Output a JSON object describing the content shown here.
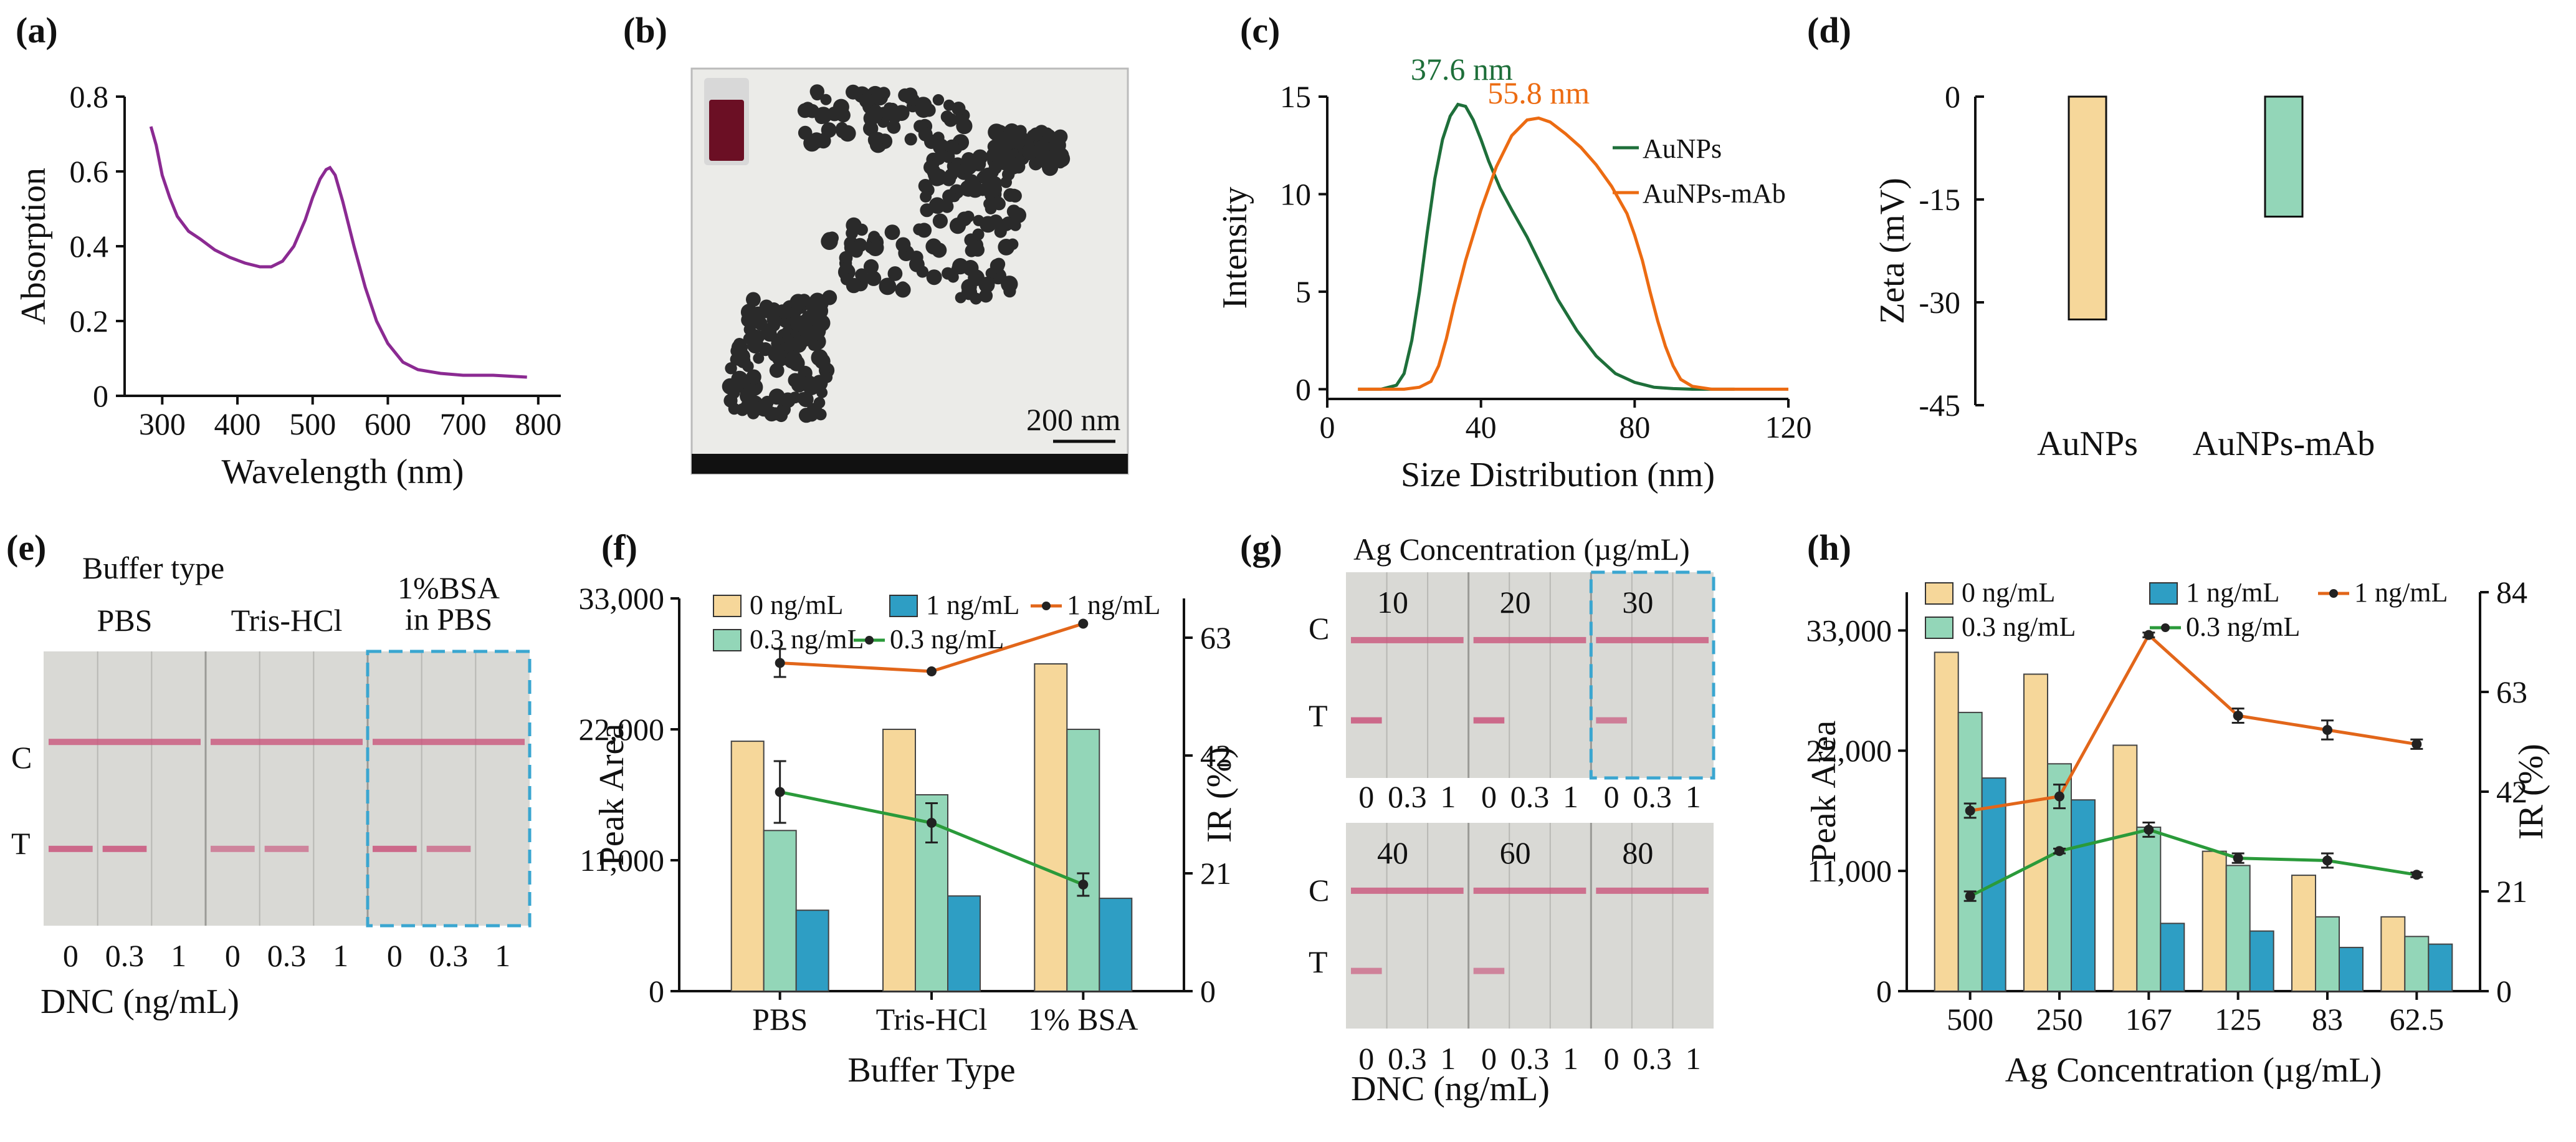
{
  "panels": {
    "a": {
      "label": "(a)"
    },
    "b": {
      "label": "(b)",
      "scale_bar": "200 nm"
    },
    "c": {
      "label": "(c)"
    },
    "d": {
      "label": "(d)"
    },
    "e": {
      "label": "(e)",
      "header": "Buffer type",
      "groups": [
        "PBS",
        "Tris-HCl",
        "1%BSA\nin PBS"
      ],
      "row_c": "C",
      "row_t": "T",
      "lane_labels": [
        "0",
        "0.3",
        "1"
      ],
      "xlabel": "DNC (ng/mL)"
    },
    "f": {
      "label": "(f)"
    },
    "g": {
      "label": "(g)",
      "header": "Ag Concentration (µg/mL)",
      "top_groups": [
        "10",
        "20",
        "30"
      ],
      "bottom_groups": [
        "40",
        "60",
        "80"
      ],
      "row_c": "C",
      "row_t": "T",
      "lane_labels": [
        "0",
        "0.3",
        "1"
      ],
      "xlabel": "DNC (ng/mL)"
    },
    "h": {
      "label": "(h)"
    }
  },
  "colors": {
    "purple": "#8b2a92",
    "green": "#1e6f3a",
    "orange": "#ec6b12",
    "bar_yellow": "#f6d79a",
    "bar_mint": "#93d6b8",
    "bar_blue": "#2e9ec4",
    "line_orange": "#e2661a",
    "line_green": "#2a9a3a",
    "dash_box": "#3aa6d0",
    "strip_bg": "#d9d9d5",
    "c_line": "#c9557c"
  },
  "chart_data": [
    {
      "id": "a",
      "type": "line",
      "xlabel": "Wavelength (nm)",
      "ylabel": "Absorption",
      "xlim": [
        250,
        830
      ],
      "ylim": [
        0,
        0.8
      ],
      "xticks": [
        300,
        400,
        500,
        600,
        700,
        800
      ],
      "yticks": [
        0,
        0.2,
        0.4,
        0.6,
        0.8
      ],
      "series": [
        {
          "x": [
            285,
            292,
            300,
            310,
            320,
            335,
            350,
            370,
            390,
            410,
            430,
            445,
            460,
            475,
            490,
            500,
            510,
            518,
            523,
            530,
            540,
            555,
            570,
            585,
            600,
            620,
            640,
            670,
            700,
            740,
            785
          ],
          "y": [
            0.72,
            0.67,
            0.59,
            0.53,
            0.48,
            0.44,
            0.42,
            0.39,
            0.37,
            0.355,
            0.345,
            0.345,
            0.36,
            0.4,
            0.47,
            0.53,
            0.58,
            0.605,
            0.61,
            0.59,
            0.52,
            0.4,
            0.29,
            0.2,
            0.14,
            0.09,
            0.07,
            0.06,
            0.055,
            0.055,
            0.05
          ]
        }
      ]
    },
    {
      "id": "c",
      "type": "line",
      "xlabel": "Size Distribution (nm)",
      "ylabel": "Intensity",
      "xlim": [
        0,
        120
      ],
      "ylim": [
        -0.5,
        15
      ],
      "xticks": [
        0,
        40,
        80,
        120
      ],
      "yticks": [
        0,
        5,
        10,
        15
      ],
      "peak_labels": [
        {
          "text": "37.6 nm",
          "x": 35,
          "y": 15.6,
          "series": 0
        },
        {
          "text": "55.8 nm",
          "x": 55,
          "y": 14.4,
          "series": 1
        }
      ],
      "series": [
        {
          "name": "AuNPs",
          "x": [
            8,
            14,
            18,
            20,
            22,
            24,
            26,
            28,
            30,
            32,
            34,
            36,
            38,
            40,
            42,
            45,
            48,
            52,
            56,
            60,
            65,
            70,
            75,
            80,
            85,
            90,
            95,
            100,
            106
          ],
          "y": [
            0,
            0,
            0.2,
            0.8,
            2.5,
            5.0,
            8.0,
            10.8,
            12.8,
            14.0,
            14.6,
            14.5,
            13.8,
            12.8,
            11.7,
            10.3,
            9.2,
            7.8,
            6.2,
            4.6,
            3.0,
            1.7,
            0.8,
            0.35,
            0.1,
            0.03,
            0,
            0,
            0
          ]
        },
        {
          "name": "AuNPs-mAb",
          "x": [
            8,
            20,
            24,
            27,
            29,
            31,
            33,
            36,
            40,
            44,
            48,
            52,
            55,
            58,
            62,
            66,
            70,
            74,
            78,
            80,
            82,
            84,
            86,
            88,
            90,
            92,
            95,
            100,
            120
          ],
          "y": [
            0,
            0,
            0.1,
            0.4,
            1.2,
            2.6,
            4.3,
            6.6,
            9.2,
            11.4,
            13.0,
            13.8,
            13.9,
            13.7,
            13.1,
            12.4,
            11.5,
            10.4,
            9.0,
            7.9,
            6.6,
            5.0,
            3.5,
            2.2,
            1.2,
            0.5,
            0.15,
            0,
            0
          ]
        }
      ]
    },
    {
      "id": "d",
      "type": "bar",
      "ylabel": "Zeta (mV)",
      "ylim": [
        -45,
        0
      ],
      "yticks": [
        0,
        -15,
        -30,
        -45
      ],
      "ytick_labels": [
        "0",
        "-15",
        "-30",
        "-45"
      ],
      "categories": [
        "AuNPs",
        "AuNPs-mAb"
      ],
      "values": [
        -32.5,
        -17.5
      ]
    },
    {
      "id": "f",
      "type": "bar",
      "xlabel": "Buffer Type",
      "ylabel": "Peak Area",
      "ylabel_right": "IR (%)",
      "ylim": [
        0,
        33000
      ],
      "ylim_right": [
        0,
        70
      ],
      "yticks": [
        0,
        11000,
        22000,
        33000
      ],
      "ytick_labels": [
        "0",
        "11,000",
        "22,000",
        "33,000"
      ],
      "yticks_right": [
        0,
        21,
        42,
        63
      ],
      "categories": [
        "PBS",
        "Tris-HCl",
        "1% BSA"
      ],
      "series": [
        {
          "name": "0 ng/mL",
          "values": [
            21000,
            22000,
            27500
          ]
        },
        {
          "name": "0.3 ng/mL",
          "values": [
            13500,
            16500,
            22000
          ]
        },
        {
          "name": "1 ng/mL",
          "values": [
            6800,
            8000,
            7800
          ]
        }
      ],
      "lines": [
        {
          "name": "1 ng/mL",
          "values": [
            58.5,
            57.0,
            65.5
          ],
          "errors": [
            2.5,
            0,
            0
          ]
        },
        {
          "name": "0.3 ng/mL",
          "values": [
            35.5,
            30.0,
            19.0
          ],
          "errors": [
            5.5,
            3.5,
            2.0
          ]
        }
      ]
    },
    {
      "id": "h",
      "type": "bar",
      "xlabel": "Ag Concentration (µg/mL)",
      "ylabel": "Peak Area",
      "ylabel_right": "IR (%)",
      "ylim": [
        0,
        36500
      ],
      "ylim_right": [
        0,
        84
      ],
      "yticks": [
        0,
        11000,
        22000,
        33000
      ],
      "ytick_labels": [
        "0",
        "11,000",
        "22,000",
        "33,000"
      ],
      "yticks_right": [
        0,
        21,
        42,
        63,
        84
      ],
      "categories": [
        "500",
        "250",
        "167",
        "125",
        "83",
        "62.5"
      ],
      "series": [
        {
          "name": "0 ng/mL",
          "values": [
            31000,
            29000,
            22500,
            12800,
            10600,
            6800
          ]
        },
        {
          "name": "0.3 ng/mL",
          "values": [
            25500,
            20800,
            15000,
            11500,
            6800,
            5000
          ]
        },
        {
          "name": "1 ng/mL",
          "values": [
            19500,
            17500,
            6200,
            5500,
            4000,
            4300
          ]
        }
      ],
      "lines": [
        {
          "name": "1 ng/mL",
          "values": [
            38,
            41,
            75,
            58,
            55,
            52
          ],
          "errors": [
            1.5,
            2.5,
            0.5,
            1.5,
            2.0,
            1.0
          ]
        },
        {
          "name": "0.3 ng/mL",
          "values": [
            20,
            29.5,
            34,
            28,
            27.5,
            24.5
          ],
          "errors": [
            1.0,
            0.5,
            1.5,
            1.0,
            1.5,
            0.5
          ]
        }
      ]
    }
  ]
}
